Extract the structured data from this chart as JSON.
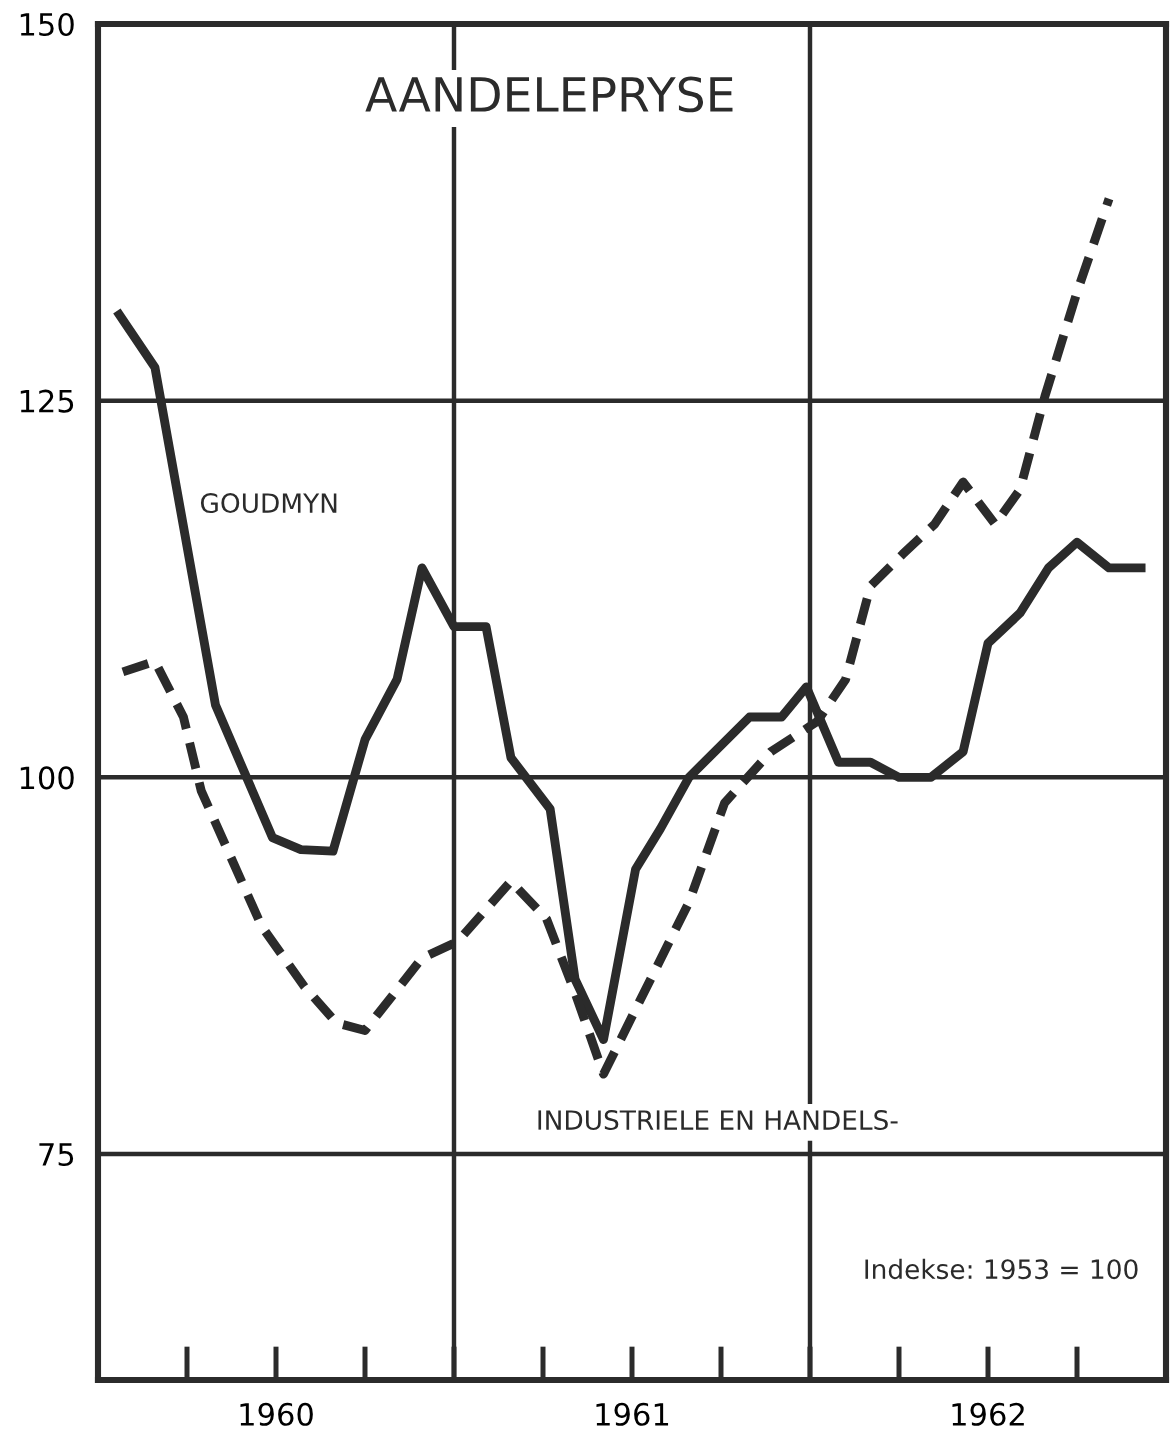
{
  "chart_data": {
    "type": "line",
    "title": "AANDELEPRYSE",
    "xlim": [
      1959.5,
      1962.5
    ],
    "ylim": [
      60,
      150
    ],
    "xticks": [
      1960,
      1961,
      1962
    ],
    "yticks": [
      75,
      100,
      125,
      150
    ],
    "grid": "y",
    "ref_lines": [
      {
        "axis": "x",
        "value": 1960.5
      },
      {
        "axis": "x",
        "value": 1961.5
      }
    ],
    "annotations": [
      "Indekse: 1953 = 100"
    ],
    "series": [
      {
        "name": "GOUDMYN",
        "color": "#2b2b2b",
        "line_style": "solid",
        "x": [
          1959.56,
          1959.66,
          1959.83,
          1959.99,
          1960.07,
          1960.16,
          1960.25,
          1960.34,
          1960.41,
          1960.5,
          1960.59,
          1960.66,
          1960.77,
          1960.84,
          1960.92,
          1961.01,
          1961.08,
          1961.16,
          1961.33,
          1961.42,
          1961.49,
          1961.58,
          1961.67,
          1961.75,
          1961.84,
          1961.93,
          1962.0,
          1962.09,
          1962.17,
          1962.25,
          1962.34,
          1962.43
        ],
        "values": [
          130.7,
          127.2,
          104.8,
          96,
          95.2,
          95.1,
          102.5,
          106.5,
          113.9,
          110,
          110,
          101.3,
          97.9,
          86.6,
          82.6,
          93.9,
          96.6,
          100,
          104,
          104,
          106,
          101,
          101,
          100,
          100,
          101.7,
          108.9,
          110.9,
          113.9,
          115.6,
          113.9,
          113.9
        ]
      },
      {
        "name": "INDUSTRIELE EN HANDELS-",
        "color": "#2b2b2b",
        "line_style": "dashed",
        "x": [
          1959.57,
          1959.66,
          1959.74,
          1959.79,
          1959.96,
          1960.08,
          1960.17,
          1960.25,
          1960.41,
          1960.51,
          1960.66,
          1960.76,
          1960.84,
          1960.92,
          1961.01,
          1961.16,
          1961.26,
          1961.39,
          1961.52,
          1961.6,
          1961.67,
          1961.76,
          1961.85,
          1961.93,
          1962.02,
          1962.09,
          1962.16,
          1962.25,
          1962.34
        ],
        "values": [
          107,
          107.7,
          104,
          99.1,
          90.1,
          86.1,
          83.7,
          83.2,
          88,
          89.1,
          93.1,
          90.6,
          85.7,
          80.3,
          84.6,
          91.7,
          98.3,
          101.7,
          103.7,
          106.5,
          112.7,
          114.8,
          116.8,
          119.6,
          116.8,
          119.1,
          125.3,
          132.2,
          138.4
        ]
      }
    ]
  }
}
